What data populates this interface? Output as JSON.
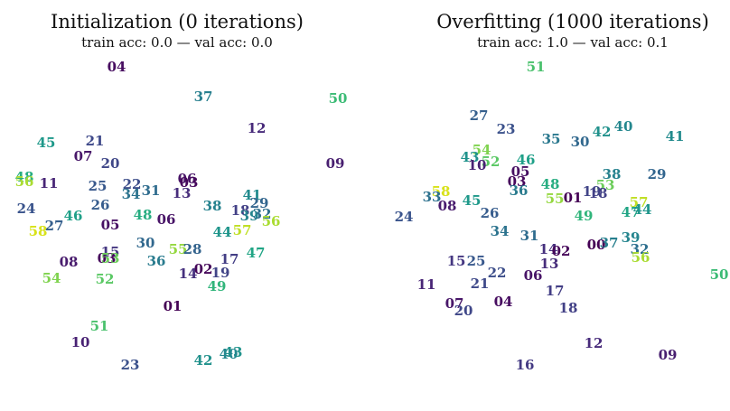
{
  "chart_data": [
    {
      "type": "scatter",
      "title": "Initialization (0 iterations)",
      "subtitle": "train acc: 0.0 — val acc: 0.0",
      "xlim": [
        0,
        404
      ],
      "ylim": [
        0,
        455
      ],
      "points": [
        {
          "label": "04",
          "x": 129,
          "y": 74
        },
        {
          "label": "37",
          "x": 225,
          "y": 107
        },
        {
          "label": "50",
          "x": 374,
          "y": 109
        },
        {
          "label": "12",
          "x": 284,
          "y": 142
        },
        {
          "label": "45",
          "x": 51,
          "y": 158
        },
        {
          "label": "21",
          "x": 105,
          "y": 156
        },
        {
          "label": "07",
          "x": 92,
          "y": 173
        },
        {
          "label": "20",
          "x": 122,
          "y": 181
        },
        {
          "label": "09",
          "x": 371,
          "y": 181
        },
        {
          "label": "48",
          "x": 27,
          "y": 196
        },
        {
          "label": "56",
          "x": 27,
          "y": 201
        },
        {
          "label": "11",
          "x": 54,
          "y": 203
        },
        {
          "label": "25",
          "x": 108,
          "y": 206
        },
        {
          "label": "22",
          "x": 146,
          "y": 204
        },
        {
          "label": "34",
          "x": 145,
          "y": 215
        },
        {
          "label": "31",
          "x": 167,
          "y": 211
        },
        {
          "label": "06",
          "x": 207,
          "y": 198
        },
        {
          "label": "03",
          "x": 209,
          "y": 202
        },
        {
          "label": "13",
          "x": 201,
          "y": 214
        },
        {
          "label": "26",
          "x": 111,
          "y": 227
        },
        {
          "label": "24",
          "x": 29,
          "y": 231
        },
        {
          "label": "38",
          "x": 235,
          "y": 228
        },
        {
          "label": "41",
          "x": 279,
          "y": 216
        },
        {
          "label": "29",
          "x": 287,
          "y": 225
        },
        {
          "label": "18",
          "x": 266,
          "y": 233
        },
        {
          "label": "39",
          "x": 276,
          "y": 239
        },
        {
          "label": "32",
          "x": 290,
          "y": 237
        },
        {
          "label": "56",
          "x": 300,
          "y": 245
        },
        {
          "label": "46",
          "x": 81,
          "y": 239
        },
        {
          "label": "48",
          "x": 158,
          "y": 238
        },
        {
          "label": "06",
          "x": 184,
          "y": 243
        },
        {
          "label": "05",
          "x": 122,
          "y": 249
        },
        {
          "label": "27",
          "x": 60,
          "y": 250
        },
        {
          "label": "58",
          "x": 42,
          "y": 256
        },
        {
          "label": "44",
          "x": 246,
          "y": 257
        },
        {
          "label": "57",
          "x": 268,
          "y": 255
        },
        {
          "label": "30",
          "x": 161,
          "y": 269
        },
        {
          "label": "55",
          "x": 197,
          "y": 276
        },
        {
          "label": "28",
          "x": 213,
          "y": 276
        },
        {
          "label": "15",
          "x": 122,
          "y": 279
        },
        {
          "label": "03",
          "x": 118,
          "y": 286
        },
        {
          "label": "53",
          "x": 122,
          "y": 286
        },
        {
          "label": "47",
          "x": 283,
          "y": 280
        },
        {
          "label": "08",
          "x": 76,
          "y": 290
        },
        {
          "label": "36",
          "x": 173,
          "y": 289
        },
        {
          "label": "17",
          "x": 254,
          "y": 287
        },
        {
          "label": "02",
          "x": 225,
          "y": 298
        },
        {
          "label": "14",
          "x": 208,
          "y": 303
        },
        {
          "label": "19",
          "x": 244,
          "y": 302
        },
        {
          "label": "54",
          "x": 57,
          "y": 308
        },
        {
          "label": "52",
          "x": 116,
          "y": 309
        },
        {
          "label": "49",
          "x": 240,
          "y": 317
        },
        {
          "label": "01",
          "x": 191,
          "y": 339
        },
        {
          "label": "51",
          "x": 110,
          "y": 361
        },
        {
          "label": "10",
          "x": 89,
          "y": 379
        },
        {
          "label": "23",
          "x": 144,
          "y": 404
        },
        {
          "label": "42",
          "x": 225,
          "y": 399
        },
        {
          "label": "43",
          "x": 258,
          "y": 390
        },
        {
          "label": "40",
          "x": 253,
          "y": 392
        }
      ]
    },
    {
      "type": "scatter",
      "title": "Overfitting (1000 iterations)",
      "subtitle": "train acc: 1.0 — val acc: 0.1",
      "xlim": [
        0,
        404
      ],
      "ylim": [
        0,
        455
      ],
      "points": [
        {
          "label": "51",
          "x": 189,
          "y": 74
        },
        {
          "label": "27",
          "x": 126,
          "y": 128
        },
        {
          "label": "23",
          "x": 156,
          "y": 143
        },
        {
          "label": "35",
          "x": 206,
          "y": 154
        },
        {
          "label": "30",
          "x": 238,
          "y": 157
        },
        {
          "label": "42",
          "x": 262,
          "y": 146
        },
        {
          "label": "40",
          "x": 286,
          "y": 140
        },
        {
          "label": "41",
          "x": 343,
          "y": 151
        },
        {
          "label": "54",
          "x": 129,
          "y": 166
        },
        {
          "label": "43",
          "x": 116,
          "y": 174
        },
        {
          "label": "52",
          "x": 139,
          "y": 179
        },
        {
          "label": "10",
          "x": 124,
          "y": 183
        },
        {
          "label": "46",
          "x": 178,
          "y": 177
        },
        {
          "label": "05",
          "x": 172,
          "y": 190
        },
        {
          "label": "03",
          "x": 168,
          "y": 201
        },
        {
          "label": "38",
          "x": 273,
          "y": 193
        },
        {
          "label": "29",
          "x": 323,
          "y": 193
        },
        {
          "label": "48",
          "x": 205,
          "y": 204
        },
        {
          "label": "53",
          "x": 266,
          "y": 205
        },
        {
          "label": "36",
          "x": 170,
          "y": 211
        },
        {
          "label": "58",
          "x": 84,
          "y": 212
        },
        {
          "label": "33",
          "x": 74,
          "y": 218
        },
        {
          "label": "08",
          "x": 91,
          "y": 228
        },
        {
          "label": "45",
          "x": 118,
          "y": 222
        },
        {
          "label": "55",
          "x": 210,
          "y": 220
        },
        {
          "label": "01",
          "x": 230,
          "y": 219
        },
        {
          "label": "19",
          "x": 251,
          "y": 212
        },
        {
          "label": "18",
          "x": 258,
          "y": 214
        },
        {
          "label": "57",
          "x": 303,
          "y": 224
        },
        {
          "label": "47",
          "x": 294,
          "y": 235
        },
        {
          "label": "44",
          "x": 307,
          "y": 232
        },
        {
          "label": "24",
          "x": 43,
          "y": 240
        },
        {
          "label": "26",
          "x": 138,
          "y": 236
        },
        {
          "label": "49",
          "x": 242,
          "y": 239
        },
        {
          "label": "34",
          "x": 149,
          "y": 256
        },
        {
          "label": "31",
          "x": 182,
          "y": 261
        },
        {
          "label": "00",
          "x": 256,
          "y": 271
        },
        {
          "label": "37",
          "x": 270,
          "y": 269
        },
        {
          "label": "39",
          "x": 294,
          "y": 263
        },
        {
          "label": "32",
          "x": 304,
          "y": 276
        },
        {
          "label": "56",
          "x": 305,
          "y": 285
        },
        {
          "label": "14",
          "x": 203,
          "y": 276
        },
        {
          "label": "02",
          "x": 217,
          "y": 278
        },
        {
          "label": "13",
          "x": 204,
          "y": 292
        },
        {
          "label": "15",
          "x": 101,
          "y": 289
        },
        {
          "label": "25",
          "x": 123,
          "y": 289
        },
        {
          "label": "22",
          "x": 146,
          "y": 302
        },
        {
          "label": "06",
          "x": 186,
          "y": 305
        },
        {
          "label": "11",
          "x": 68,
          "y": 315
        },
        {
          "label": "21",
          "x": 127,
          "y": 314
        },
        {
          "label": "17",
          "x": 210,
          "y": 322
        },
        {
          "label": "04",
          "x": 153,
          "y": 334
        },
        {
          "label": "07",
          "x": 99,
          "y": 336
        },
        {
          "label": "20",
          "x": 109,
          "y": 344
        },
        {
          "label": "18",
          "x": 225,
          "y": 341
        },
        {
          "label": "50",
          "x": 392,
          "y": 304
        },
        {
          "label": "12",
          "x": 253,
          "y": 380
        },
        {
          "label": "09",
          "x": 335,
          "y": 393
        },
        {
          "label": "16",
          "x": 177,
          "y": 404
        }
      ]
    }
  ],
  "colors": {
    "00": "#440154",
    "01": "#440154",
    "02": "#450559",
    "03": "#46085c",
    "04": "#470d60",
    "05": "#471063",
    "06": "#481467",
    "07": "#481769",
    "08": "#481b6d",
    "09": "#481f70",
    "10": "#482173",
    "11": "#482576",
    "12": "#472a7a",
    "13": "#472d7b",
    "14": "#46307e",
    "15": "#453781",
    "16": "#443a83",
    "17": "#433e85",
    "18": "#424086",
    "19": "#414487",
    "20": "#3f4788",
    "21": "#3e4989",
    "22": "#3d4e8a",
    "23": "#3b518b",
    "24": "#3a548c",
    "25": "#38588c",
    "26": "#365c8d",
    "27": "#355f8d",
    "28": "#33638d",
    "29": "#32658e",
    "30": "#31688e",
    "31": "#2f6c8e",
    "32": "#2e6f8e",
    "33": "#2d718e",
    "34": "#2c738e",
    "35": "#2a788e",
    "36": "#297b8e",
    "37": "#277f8e",
    "38": "#26828e",
    "39": "#25858e",
    "40": "#24878e",
    "41": "#228b8d",
    "42": "#21918c",
    "43": "#20938c",
    "44": "#1f958b",
    "45": "#1f998a",
    "46": "#1fa088",
    "47": "#21a585",
    "48": "#27ad81",
    "49": "#31b57b",
    "50": "#3bbb75",
    "51": "#4ac16d",
    "52": "#5ac864",
    "53": "#6ccd5a",
    "54": "#7fd34e",
    "55": "#95d840",
    "56": "#aadc32",
    "57": "#c0df25",
    "58": "#d8e219"
  }
}
